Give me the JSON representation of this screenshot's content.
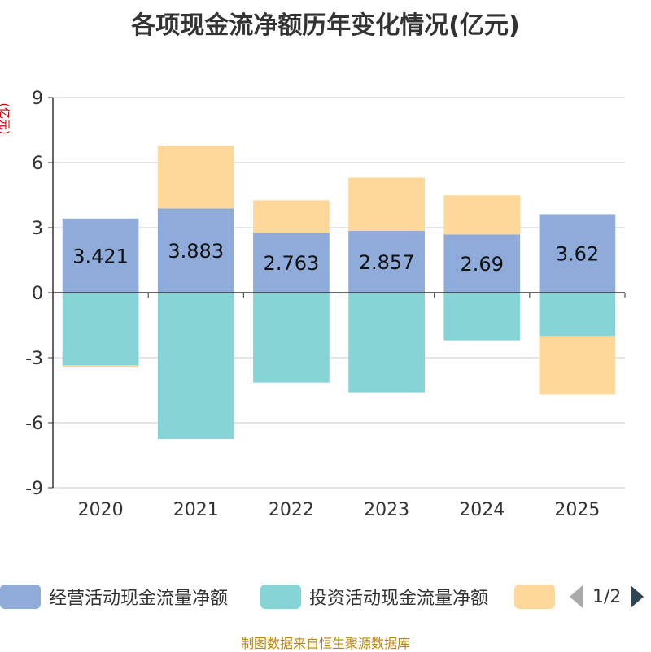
{
  "title": "各项现金流净额历年变化情况(亿元)",
  "y_unit": "(亿元)",
  "source": "制图数据来自恒生聚源数据库",
  "legend": {
    "items": [
      {
        "label": "经营活动现金流量净额",
        "color": "#8eabd9"
      },
      {
        "label": "投资活动现金流量净额",
        "color": "#86d4d6"
      },
      {
        "label": "",
        "color": "#fdd89a"
      }
    ],
    "page": "1/2"
  },
  "chart_data": {
    "type": "bar",
    "stacked": true,
    "categories": [
      "2020",
      "2021",
      "2022",
      "2023",
      "2024",
      "2025"
    ],
    "ylim": [
      -9,
      9
    ],
    "yticks": [
      9,
      6,
      3,
      0,
      -3,
      -6,
      -9
    ],
    "series": [
      {
        "name": "经营活动现金流量净额",
        "color": "#8eabd9",
        "values": [
          3.421,
          3.883,
          2.763,
          2.857,
          2.69,
          3.62
        ],
        "show_labels": true
      },
      {
        "name": "投资活动现金流量净额",
        "color": "#86d4d6",
        "values": [
          -3.35,
          -6.75,
          -4.15,
          -4.6,
          -2.2,
          -2.0
        ],
        "show_labels": false
      },
      {
        "name": "",
        "color": "#fdd89a",
        "values": [
          -0.1,
          2.9,
          1.5,
          2.45,
          1.8,
          -2.7
        ],
        "show_labels": false
      }
    ],
    "grid": true
  }
}
